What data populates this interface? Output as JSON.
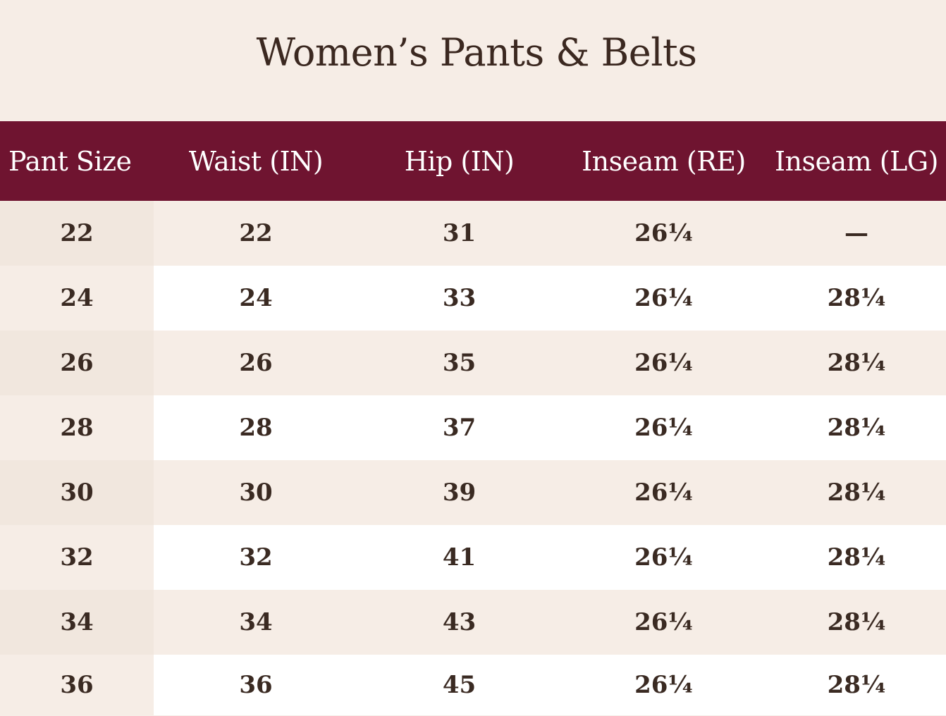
{
  "title": "Women’s Pants & Belts",
  "table": {
    "headers": [
      "Pant Size",
      "Waist (IN)",
      "Hip (IN)",
      "Inseam (RE)",
      "Inseam (LG)"
    ],
    "rows": [
      [
        "22",
        "22",
        "31",
        "26¼",
        "—"
      ],
      [
        "24",
        "24",
        "33",
        "26¼",
        "28¼"
      ],
      [
        "26",
        "26",
        "35",
        "26¼",
        "28¼"
      ],
      [
        "28",
        "28",
        "37",
        "26¼",
        "28¼"
      ],
      [
        "30",
        "30",
        "39",
        "26¼",
        "28¼"
      ],
      [
        "32",
        "32",
        "41",
        "26¼",
        "28¼"
      ],
      [
        "34",
        "34",
        "43",
        "26¼",
        "28¼"
      ],
      [
        "36",
        "36",
        "45",
        "26¼",
        "28¼"
      ]
    ]
  },
  "colors": {
    "header_bg": "#6f1430",
    "header_text": "#ffffff",
    "page_bg": "#f6ede6",
    "text": "#3a2a22"
  }
}
